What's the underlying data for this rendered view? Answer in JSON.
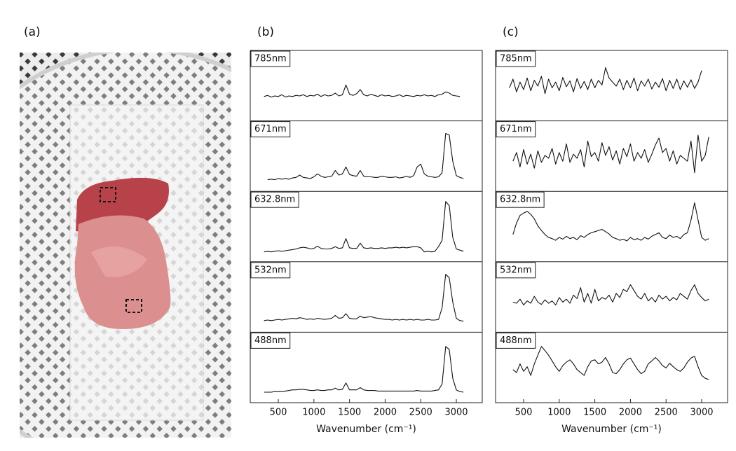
{
  "panel_a": {
    "label": "(a)"
  },
  "chart_data": [
    {
      "type": "line",
      "panel_label": "(b)",
      "x_label": "Wavenumber (cm⁻¹)",
      "color": "#111111",
      "xlim": [
        106,
        3364
      ],
      "xticks": [
        500,
        1000,
        1500,
        2000,
        2500,
        3000
      ],
      "ylim": [
        0,
        100
      ],
      "x": [
        300,
        350,
        400,
        450,
        500,
        550,
        600,
        650,
        700,
        750,
        800,
        850,
        900,
        950,
        1000,
        1050,
        1100,
        1150,
        1200,
        1250,
        1300,
        1350,
        1400,
        1450,
        1500,
        1550,
        1600,
        1650,
        1700,
        1750,
        1800,
        1850,
        1900,
        1950,
        2000,
        2050,
        2100,
        2150,
        2200,
        2250,
        2300,
        2350,
        2400,
        2450,
        2500,
        2550,
        2600,
        2650,
        2700,
        2750,
        2800,
        2850,
        2900,
        2950,
        3000,
        3050,
        3100
      ],
      "series": [
        {
          "name": "785nm",
          "values": [
            30,
            32,
            29,
            31,
            30,
            33,
            29,
            31,
            30,
            32,
            31,
            33,
            30,
            32,
            31,
            34,
            30,
            33,
            31,
            32,
            36,
            31,
            33,
            50,
            34,
            32,
            35,
            42,
            33,
            31,
            34,
            32,
            30,
            33,
            31,
            32,
            30,
            31,
            33,
            30,
            32,
            31,
            30,
            32,
            31,
            33,
            31,
            32,
            30,
            33,
            34,
            38,
            36,
            32,
            31,
            30,
            null
          ]
        },
        {
          "name": "671nm",
          "values": [
            null,
            8,
            9,
            8,
            10,
            9,
            10,
            9,
            11,
            12,
            16,
            12,
            11,
            10,
            13,
            18,
            14,
            12,
            13,
            14,
            24,
            16,
            18,
            30,
            17,
            15,
            14,
            24,
            14,
            13,
            13,
            12,
            12,
            14,
            13,
            12,
            12,
            13,
            11,
            12,
            14,
            12,
            15,
            30,
            35,
            18,
            14,
            13,
            12,
            13,
            20,
            88,
            85,
            40,
            15,
            12,
            10
          ]
        },
        {
          "name": "632.8nm",
          "values": [
            5,
            6,
            5,
            6,
            7,
            6,
            7,
            8,
            9,
            10,
            12,
            13,
            12,
            10,
            11,
            15,
            11,
            10,
            10,
            11,
            14,
            11,
            12,
            28,
            12,
            11,
            11,
            20,
            12,
            11,
            12,
            11,
            11,
            12,
            11,
            12,
            12,
            13,
            12,
            13,
            12,
            13,
            14,
            14,
            12,
            5,
            6,
            5,
            6,
            14,
            25,
            92,
            85,
            30,
            10,
            8,
            6
          ]
        },
        {
          "name": "532nm",
          "values": [
            8,
            9,
            8,
            9,
            10,
            9,
            10,
            11,
            12,
            11,
            13,
            12,
            10,
            11,
            10,
            12,
            11,
            10,
            11,
            12,
            17,
            12,
            13,
            20,
            12,
            11,
            11,
            16,
            13,
            14,
            15,
            13,
            12,
            11,
            10,
            10,
            9,
            10,
            9,
            10,
            9,
            10,
            9,
            10,
            9,
            9,
            10,
            9,
            9,
            10,
            30,
            88,
            82,
            40,
            12,
            8,
            7
          ]
        },
        {
          "name": "488nm",
          "values": [
            6,
            6,
            6,
            7,
            7,
            7,
            8,
            9,
            10,
            10,
            11,
            11,
            10,
            9,
            9,
            10,
            9,
            9,
            10,
            10,
            13,
            10,
            11,
            22,
            10,
            10,
            10,
            14,
            10,
            9,
            9,
            9,
            8,
            8,
            8,
            8,
            8,
            8,
            8,
            8,
            8,
            8,
            8,
            9,
            8,
            8,
            8,
            8,
            9,
            10,
            20,
            85,
            80,
            30,
            10,
            7,
            6
          ]
        }
      ]
    },
    {
      "type": "line",
      "panel_label": "(c)",
      "x_label": "Wavenumber (cm⁻¹)",
      "color": "#111111",
      "xlim": [
        106,
        3364
      ],
      "xticks": [
        500,
        1000,
        1500,
        2000,
        2500,
        3000
      ],
      "ylim": [
        0,
        100
      ],
      "x": [
        300,
        350,
        400,
        450,
        500,
        550,
        600,
        650,
        700,
        750,
        800,
        850,
        900,
        950,
        1000,
        1050,
        1100,
        1150,
        1200,
        1250,
        1300,
        1350,
        1400,
        1450,
        1500,
        1550,
        1600,
        1650,
        1700,
        1750,
        1800,
        1850,
        1900,
        1950,
        2000,
        2050,
        2100,
        2150,
        2200,
        2250,
        2300,
        2350,
        2400,
        2450,
        2500,
        2550,
        2600,
        2650,
        2700,
        2750,
        2800,
        2850,
        2900,
        2950,
        3000,
        3050,
        3100
      ],
      "series": [
        {
          "name": "785nm",
          "values": [
            45,
            60,
            38,
            55,
            42,
            62,
            40,
            58,
            48,
            65,
            35,
            60,
            45,
            55,
            40,
            63,
            47,
            57,
            38,
            61,
            44,
            56,
            42,
            60,
            45,
            58,
            50,
            80,
            62,
            55,
            48,
            60,
            42,
            58,
            45,
            62,
            40,
            57,
            48,
            60,
            43,
            55,
            46,
            61,
            40,
            58,
            44,
            60,
            42,
            57,
            46,
            59,
            44,
            55,
            75,
            null,
            null
          ]
        },
        {
          "name": "671nm",
          "values": [
            null,
            40,
            55,
            30,
            60,
            35,
            52,
            28,
            58,
            38,
            50,
            45,
            62,
            35,
            55,
            40,
            70,
            38,
            52,
            45,
            60,
            30,
            75,
            48,
            55,
            40,
            72,
            50,
            65,
            42,
            58,
            35,
            62,
            48,
            70,
            40,
            55,
            45,
            60,
            38,
            52,
            68,
            80,
            55,
            62,
            40,
            58,
            35,
            50,
            45,
            40,
            75,
            20,
            85,
            40,
            50,
            82
          ]
        },
        {
          "name": "632.8nm",
          "values": [
            null,
            35,
            55,
            68,
            72,
            75,
            70,
            62,
            50,
            42,
            35,
            30,
            28,
            25,
            30,
            27,
            32,
            28,
            30,
            26,
            33,
            30,
            35,
            38,
            40,
            42,
            44,
            40,
            36,
            30,
            28,
            25,
            27,
            24,
            30,
            26,
            28,
            25,
            30,
            27,
            32,
            35,
            38,
            30,
            28,
            34,
            30,
            32,
            28,
            35,
            38,
            60,
            90,
            60,
            30,
            25,
            28
          ]
        },
        {
          "name": "532nm",
          "values": [
            null,
            40,
            38,
            45,
            35,
            42,
            38,
            50,
            40,
            36,
            44,
            38,
            42,
            35,
            48,
            40,
            45,
            38,
            52,
            46,
            65,
            40,
            55,
            38,
            62,
            42,
            48,
            45,
            52,
            40,
            55,
            48,
            62,
            58,
            70,
            60,
            50,
            45,
            55,
            42,
            48,
            40,
            52,
            45,
            50,
            42,
            48,
            44,
            55,
            50,
            45,
            60,
            70,
            55,
            48,
            42,
            45
          ]
        },
        {
          "name": "488nm",
          "values": [
            null,
            45,
            40,
            55,
            42,
            50,
            35,
            55,
            70,
            85,
            78,
            70,
            60,
            50,
            42,
            52,
            58,
            62,
            55,
            45,
            40,
            35,
            50,
            60,
            62,
            55,
            58,
            66,
            55,
            40,
            38,
            45,
            55,
            62,
            65,
            55,
            45,
            38,
            42,
            55,
            60,
            66,
            60,
            52,
            48,
            56,
            50,
            45,
            42,
            48,
            58,
            65,
            68,
            50,
            35,
            30,
            28
          ]
        }
      ]
    }
  ]
}
